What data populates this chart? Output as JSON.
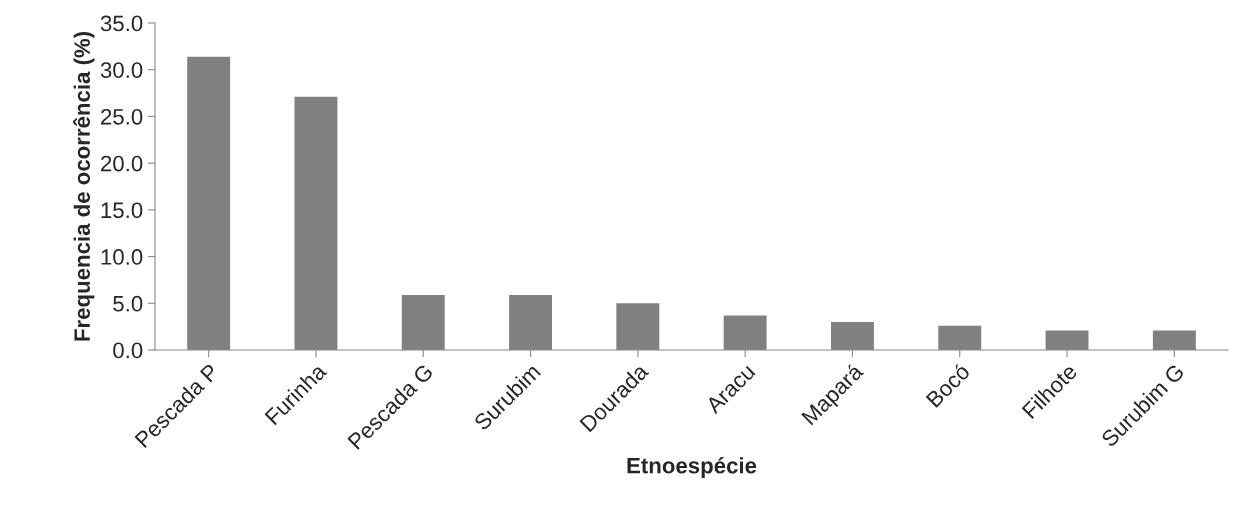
{
  "chart_data": {
    "type": "bar",
    "xlabel": "Etnoespécie",
    "ylabel": "Frequencia de ocorrência (%)",
    "categories": [
      "Pescada P",
      "Furinha",
      "Pescada G",
      "Surubim",
      "Dourada",
      "Aracu",
      "Mapará",
      "Bocó",
      "Filhote",
      "Surubim G"
    ],
    "values": [
      31.4,
      27.1,
      5.9,
      5.9,
      5.0,
      3.7,
      3.0,
      2.6,
      2.1,
      2.1
    ],
    "color": "#808080",
    "ylim": [
      0,
      35
    ],
    "yticks": [
      {
        "value": 0,
        "label": "0.0"
      },
      {
        "value": 5,
        "label": "5.0"
      },
      {
        "value": 10,
        "label": "10.0"
      },
      {
        "value": 15,
        "label": "15.0"
      },
      {
        "value": 20,
        "label": "20.0"
      },
      {
        "value": 25,
        "label": "25.0"
      },
      {
        "value": 30,
        "label": "30.0"
      },
      {
        "value": 35,
        "label": "35.0"
      }
    ],
    "grid": false,
    "legend": false
  }
}
